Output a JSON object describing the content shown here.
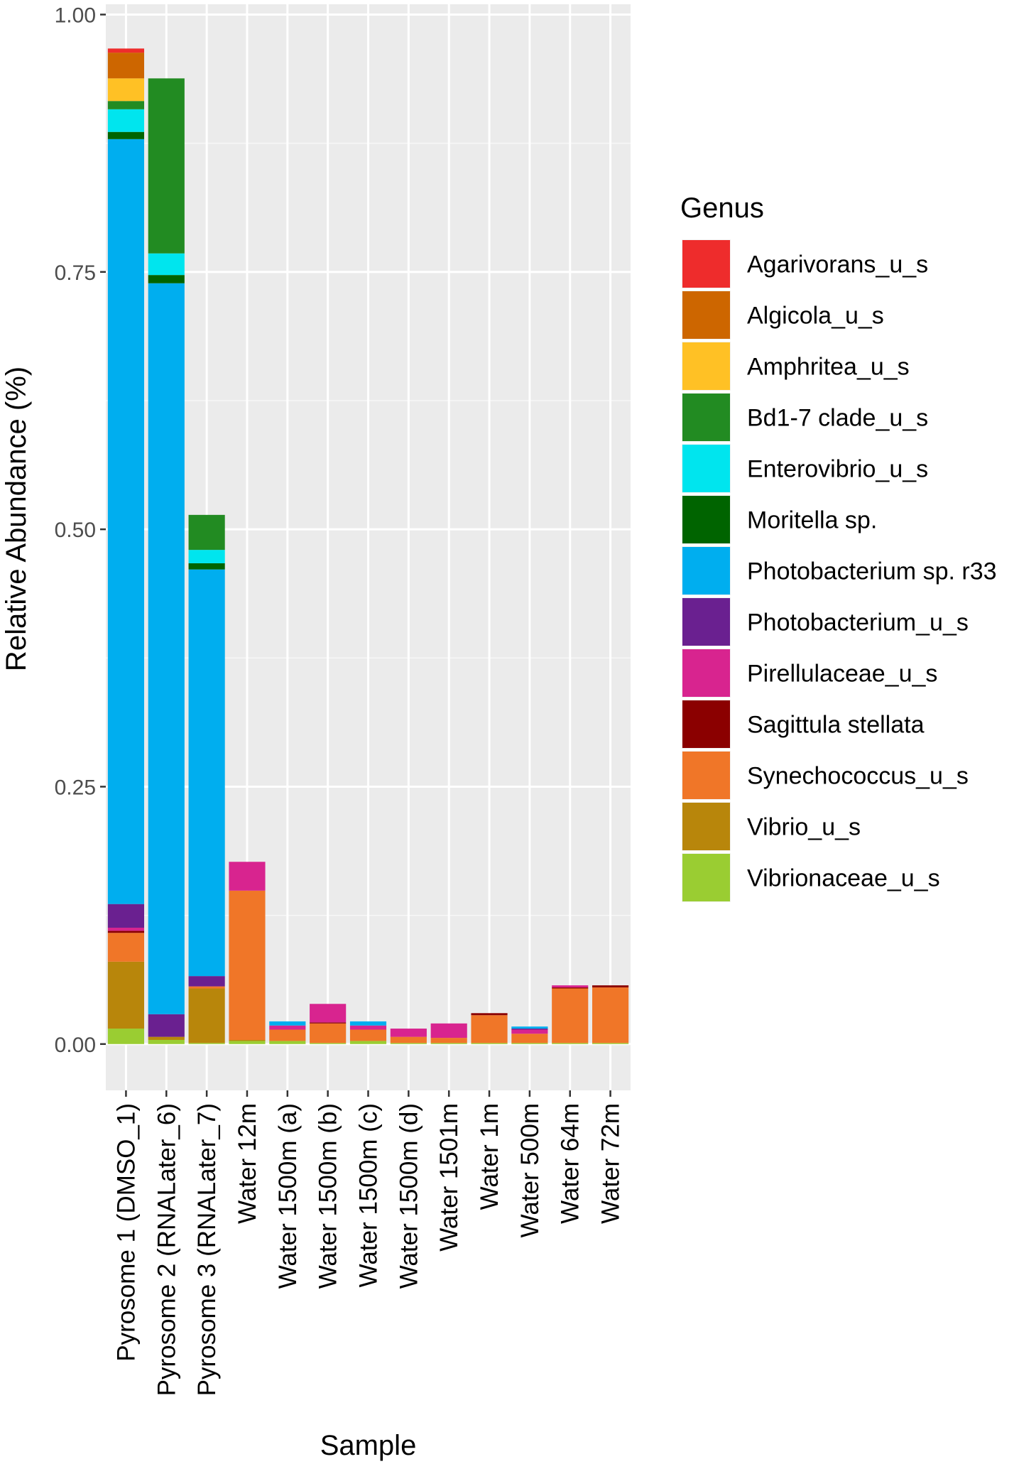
{
  "chart_data": {
    "type": "bar",
    "stacked": true,
    "xlabel": "Sample",
    "ylabel": "Relative Abundance (%)",
    "ylim": [
      -0.045,
      1.01
    ],
    "yticks": [
      0.0,
      0.25,
      0.5,
      0.75,
      1.0
    ],
    "ytick_labels": [
      "0.00",
      "0.25",
      "0.50",
      "0.75",
      "1.00"
    ],
    "categories": [
      "Pyrosome 1 (DMSO_1)",
      "Pyrosome 2 (RNALater_6)",
      "Pyrosome 3 (RNALater_7)",
      "Water 12m",
      "Water 1500m (a)",
      "Water 1500m (b)",
      "Water 1500m (c)",
      "Water 1500m (d)",
      "Water 1501m",
      "Water 1m",
      "Water 500m",
      "Water 64m",
      "Water 72m"
    ],
    "legend_title": "Genus",
    "legend_position": "right",
    "series": [
      {
        "name": "Vibrionaceae_u_s",
        "color": "#9acd32",
        "values": [
          0.015,
          0.004,
          0.001,
          0.003,
          0.003,
          0.001,
          0.003,
          0.001,
          0.001,
          0.001,
          0.001,
          0.001,
          0.001
        ]
      },
      {
        "name": "Vibrio_u_s",
        "color": "#b8860b",
        "values": [
          0.065,
          0.003,
          0.053,
          0.001,
          0.0,
          0.0,
          0.0,
          0.0,
          0.0,
          0.0,
          0.0,
          0.0,
          0.0
        ]
      },
      {
        "name": "Synechococcus_u_s",
        "color": "#f07628",
        "values": [
          0.028,
          0.0,
          0.002,
          0.145,
          0.011,
          0.019,
          0.011,
          0.006,
          0.005,
          0.027,
          0.009,
          0.053,
          0.054
        ]
      },
      {
        "name": "Sagittula stellata",
        "color": "#8b0000",
        "values": [
          0.002,
          0.0,
          0.0,
          0.0,
          0.0,
          0.001,
          0.0,
          0.0,
          0.0,
          0.002,
          0.0,
          0.001,
          0.002
        ]
      },
      {
        "name": "Pirellulaceae_u_s",
        "color": "#d8248f",
        "values": [
          0.003,
          0.0,
          0.0,
          0.028,
          0.004,
          0.018,
          0.004,
          0.008,
          0.014,
          0.0,
          0.004,
          0.002,
          0.0
        ]
      },
      {
        "name": "Photobacterium_u_s",
        "color": "#6a2090",
        "values": [
          0.023,
          0.022,
          0.01,
          0.0,
          0.0,
          0.0,
          0.0,
          0.0,
          0.0,
          0.0,
          0.001,
          0.0,
          0.0
        ]
      },
      {
        "name": "Photobacterium sp. r33",
        "color": "#00aeef",
        "values": [
          0.743,
          0.71,
          0.395,
          0.0,
          0.004,
          0.0,
          0.004,
          0.0,
          0.0,
          0.0,
          0.002,
          0.0,
          0.0
        ]
      },
      {
        "name": "Moritella sp.",
        "color": "#006400",
        "values": [
          0.007,
          0.008,
          0.006,
          0.0,
          0.0,
          0.0,
          0.0,
          0.0,
          0.0,
          0.0,
          0.0,
          0.0,
          0.0
        ]
      },
      {
        "name": "Enterovibrio_u_s",
        "color": "#00e5ee",
        "values": [
          0.022,
          0.021,
          0.013,
          0.0,
          0.0,
          0.0,
          0.0,
          0.0,
          0.0,
          0.0,
          0.0,
          0.0,
          0.0
        ]
      },
      {
        "name": "Bd1-7 clade_u_s",
        "color": "#228b22",
        "values": [
          0.008,
          0.17,
          0.034,
          0.0,
          0.0,
          0.0,
          0.0,
          0.0,
          0.0,
          0.0,
          0.0,
          0.0,
          0.0
        ]
      },
      {
        "name": "Amphritea_u_s",
        "color": "#ffc125",
        "values": [
          0.022,
          0.0,
          0.0,
          0.0,
          0.0,
          0.0,
          0.0,
          0.0,
          0.0,
          0.0,
          0.0,
          0.0,
          0.0
        ]
      },
      {
        "name": "Algicola_u_s",
        "color": "#cd6600",
        "values": [
          0.025,
          0.0,
          0.0,
          0.0,
          0.0,
          0.0,
          0.0,
          0.0,
          0.0,
          0.0,
          0.0,
          0.0,
          0.0
        ]
      },
      {
        "name": "Agarivorans_u_s",
        "color": "#ee2c2c",
        "values": [
          0.004,
          0.0,
          0.0,
          0.0,
          0.0,
          0.0,
          0.0,
          0.0,
          0.0,
          0.0,
          0.0,
          0.0,
          0.0
        ]
      }
    ],
    "legend_order": [
      "Agarivorans_u_s",
      "Algicola_u_s",
      "Amphritea_u_s",
      "Bd1-7 clade_u_s",
      "Enterovibrio_u_s",
      "Moritella sp.",
      "Photobacterium sp. r33",
      "Photobacterium_u_s",
      "Pirellulaceae_u_s",
      "Sagittula stellata",
      "Synechococcus_u_s",
      "Vibrio_u_s",
      "Vibrionaceae_u_s"
    ],
    "colors": {
      "panel": "#ebebeb",
      "grid_major": "#ffffff",
      "grid_minor": "#f7f7f7"
    }
  }
}
